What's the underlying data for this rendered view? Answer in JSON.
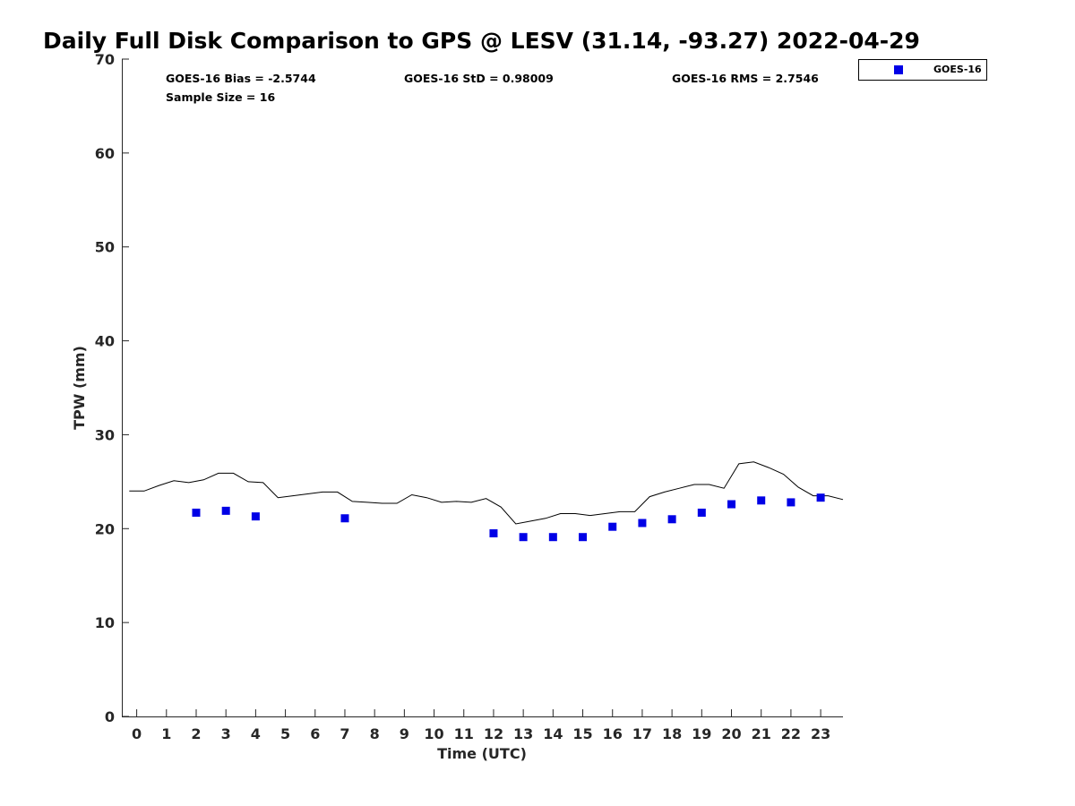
{
  "chart_data": {
    "type": "line",
    "title": "Daily Full Disk Comparison to GPS @ LESV (31.14, -93.27) 2022-04-29",
    "xlabel": "Time (UTC)",
    "ylabel": "TPW (mm)",
    "xlim": [
      -0.5,
      23.75
    ],
    "ylim": [
      0,
      70
    ],
    "xticks": [
      0,
      1,
      2,
      3,
      4,
      5,
      6,
      7,
      8,
      9,
      10,
      11,
      12,
      13,
      14,
      15,
      16,
      17,
      18,
      19,
      20,
      21,
      22,
      23
    ],
    "yticks": [
      0,
      10,
      20,
      30,
      40,
      50,
      60,
      70
    ],
    "grid": false,
    "legend_position": "top-right",
    "stats": {
      "bias": "GOES-16 Bias = -2.5744",
      "std": "GOES-16 StD = 0.98009",
      "rms": "GOES-16 RMS = 2.7546",
      "sample_size": "Sample Size = 16"
    },
    "colors": {
      "goes16": "#0000e6",
      "gps_line": "#000000"
    },
    "series": [
      {
        "kind": "line",
        "x": [
          -0.25,
          0.25,
          0.75,
          1.25,
          1.75,
          2.25,
          2.75,
          3.25,
          3.75,
          4.25,
          4.75,
          5.25,
          5.75,
          6.25,
          6.75,
          7.25,
          7.75,
          8.25,
          8.75,
          9.25,
          9.75,
          10.25,
          10.75,
          11.25,
          11.75,
          12.25,
          12.75,
          13.25,
          13.75,
          14.25,
          14.75,
          15.25,
          15.75,
          16.25,
          16.75,
          17.25,
          17.75,
          18.25,
          18.75,
          19.25,
          19.75,
          20.25,
          20.75,
          21.25,
          21.75,
          22.25,
          22.75,
          23.25,
          23.75
        ],
        "y": [
          24.0,
          24.0,
          24.6,
          25.1,
          24.9,
          25.2,
          25.9,
          25.9,
          25.0,
          24.9,
          23.3,
          23.5,
          23.7,
          23.9,
          23.9,
          22.9,
          22.8,
          22.7,
          22.7,
          23.6,
          23.3,
          22.8,
          22.9,
          22.8,
          23.2,
          22.3,
          20.5,
          20.8,
          21.1,
          21.6,
          21.6,
          21.4,
          21.6,
          21.8,
          21.8,
          23.4,
          23.9,
          24.3,
          24.7,
          24.7,
          24.3,
          26.9,
          27.1,
          26.5,
          25.8,
          24.4,
          23.5,
          23.5,
          23.1
        ]
      },
      {
        "name": "GOES-16",
        "kind": "scatter",
        "x": [
          2,
          3,
          4,
          7,
          12,
          13,
          14,
          15,
          16,
          17,
          18,
          19,
          20,
          21,
          22,
          23
        ],
        "y": [
          21.7,
          21.9,
          21.3,
          21.1,
          19.5,
          19.1,
          19.1,
          19.1,
          20.2,
          20.6,
          21.0,
          21.7,
          22.6,
          23.0,
          22.8,
          23.3
        ]
      }
    ]
  }
}
